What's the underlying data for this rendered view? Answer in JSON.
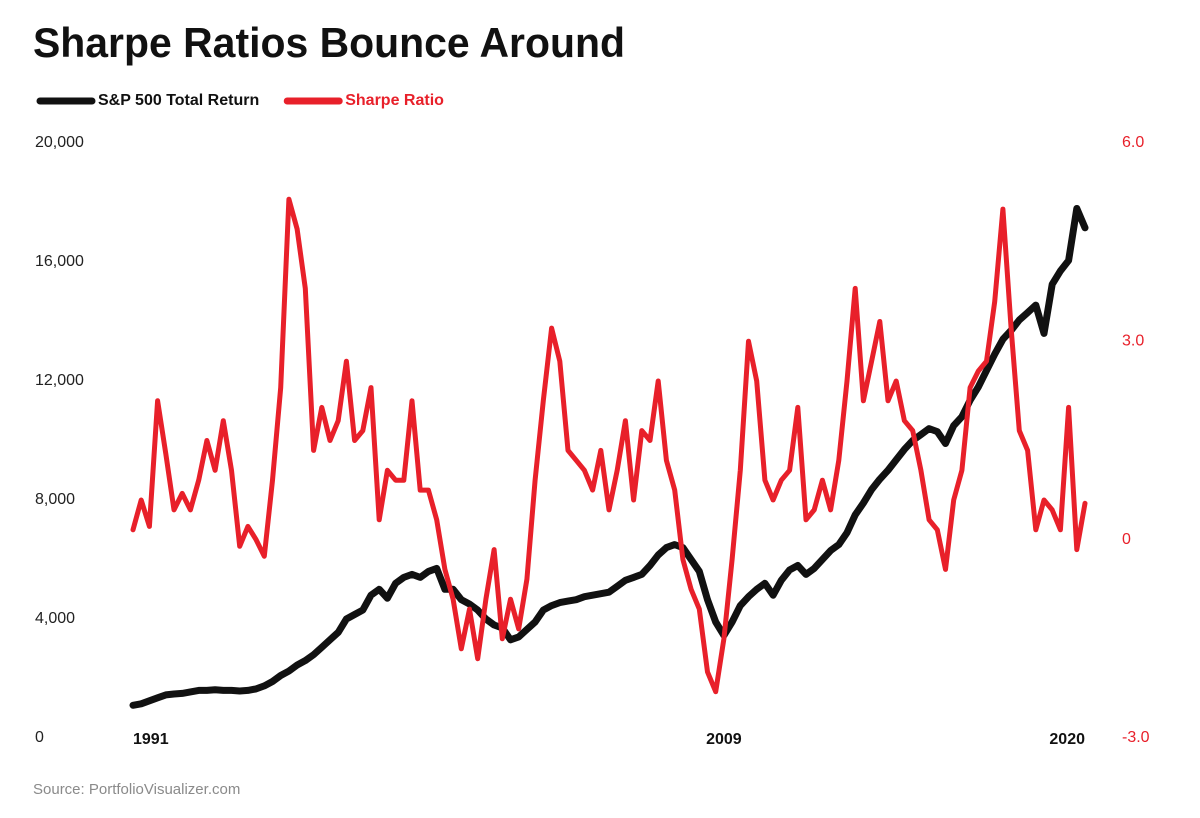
{
  "chart_data": {
    "type": "line",
    "title": "Sharpe Ratios Bounce Around",
    "source": "Source: PortfolioVisualizer.com",
    "x": [
      1991,
      1991.25,
      1991.5,
      1991.75,
      1992,
      1992.25,
      1992.5,
      1992.75,
      1993,
      1993.25,
      1993.5,
      1993.75,
      1994,
      1994.25,
      1994.5,
      1994.75,
      1995,
      1995.25,
      1995.5,
      1995.75,
      1996,
      1996.25,
      1996.5,
      1996.75,
      1997,
      1997.25,
      1997.5,
      1997.75,
      1998,
      1998.25,
      1998.5,
      1998.75,
      1999,
      1999.25,
      1999.5,
      1999.75,
      2000,
      2000.25,
      2000.5,
      2000.75,
      2001,
      2001.25,
      2001.5,
      2001.75,
      2002,
      2002.25,
      2002.5,
      2002.75,
      2003,
      2003.25,
      2003.5,
      2003.75,
      2004,
      2004.25,
      2004.5,
      2004.75,
      2005,
      2005.25,
      2005.5,
      2005.75,
      2006,
      2006.25,
      2006.5,
      2006.75,
      2007,
      2007.25,
      2007.5,
      2007.75,
      2008,
      2008.25,
      2008.5,
      2008.75,
      2009,
      2009.25,
      2009.5,
      2009.75,
      2010,
      2010.25,
      2010.5,
      2010.75,
      2011,
      2011.25,
      2011.5,
      2011.75,
      2012,
      2012.25,
      2012.5,
      2012.75,
      2013,
      2013.25,
      2013.5,
      2013.75,
      2014,
      2014.25,
      2014.5,
      2014.75,
      2015,
      2015.25,
      2015.5,
      2015.75,
      2016,
      2016.25,
      2016.5,
      2016.75,
      2017,
      2017.25,
      2017.5,
      2017.75,
      2018,
      2018.25,
      2018.5,
      2018.75,
      2019,
      2019.25,
      2019.5,
      2019.75,
      2020
    ],
    "series": [
      {
        "name": "S&P 500 Total Return",
        "color": "#111111",
        "axis": "y",
        "values": [
          1100,
          1150,
          1250,
          1350,
          1450,
          1480,
          1500,
          1550,
          1600,
          1600,
          1620,
          1600,
          1600,
          1580,
          1600,
          1650,
          1750,
          1900,
          2100,
          2250,
          2450,
          2600,
          2800,
          3050,
          3300,
          3550,
          4000,
          4150,
          4300,
          4800,
          5000,
          4700,
          5200,
          5400,
          5500,
          5400,
          5600,
          5700,
          5000,
          5000,
          4650,
          4500,
          4300,
          4000,
          3800,
          3700,
          3300,
          3400,
          3650,
          3900,
          4300,
          4450,
          4550,
          4600,
          4650,
          4750,
          4800,
          4850,
          4900,
          5100,
          5300,
          5400,
          5500,
          5800,
          6150,
          6400,
          6500,
          6400,
          6000,
          5600,
          4650,
          3900,
          3450,
          3900,
          4450,
          4750,
          5000,
          5200,
          4800,
          5300,
          5650,
          5800,
          5500,
          5700,
          6000,
          6300,
          6500,
          6900,
          7500,
          7900,
          8350,
          8700,
          9000,
          9350,
          9700,
          10000,
          10200,
          10400,
          10300,
          9900,
          10500,
          10800,
          11350,
          11800,
          12350,
          12900,
          13400,
          13700,
          14050,
          14300,
          14550,
          13600,
          15250,
          15700,
          16050,
          17800,
          17150
        ]
      },
      {
        "name": "Sharpe Ratio",
        "color": "#e8202a",
        "axis": "y2",
        "values": [
          0.15,
          0.6,
          0.2,
          2.1,
          1.3,
          0.45,
          0.7,
          0.45,
          0.9,
          1.5,
          1.05,
          1.8,
          1.05,
          -0.1,
          0.2,
          0,
          -0.25,
          0.9,
          2.3,
          5.15,
          4.7,
          3.8,
          1.35,
          2.0,
          1.5,
          1.8,
          2.7,
          1.5,
          1.65,
          2.3,
          0.3,
          1.05,
          0.9,
          0.9,
          2.1,
          0.75,
          0.75,
          0.3,
          -0.45,
          -0.9,
          -1.65,
          -1.05,
          -1.8,
          -0.9,
          -0.15,
          -1.5,
          -0.9,
          -1.35,
          -0.6,
          0.9,
          2.1,
          3.2,
          2.7,
          1.35,
          1.2,
          1.05,
          0.75,
          1.35,
          0.45,
          1.05,
          1.8,
          0.6,
          1.65,
          1.5,
          2.4,
          1.2,
          0.75,
          -0.3,
          -0.75,
          -1.05,
          -2.0,
          -2.3,
          -1.5,
          -0.3,
          1.05,
          3.0,
          2.4,
          0.9,
          0.6,
          0.9,
          1.05,
          2.0,
          0.3,
          0.45,
          0.9,
          0.45,
          1.2,
          2.4,
          3.8,
          2.1,
          2.7,
          3.3,
          2.1,
          2.4,
          1.8,
          1.65,
          1.05,
          0.3,
          0.15,
          -0.45,
          0.6,
          1.05,
          2.3,
          2.55,
          2.7,
          3.6,
          5.0,
          3.2,
          1.65,
          1.35,
          0.15,
          0.6,
          0.45,
          0.15,
          2.0,
          -0.15,
          0.55
        ]
      }
    ],
    "xlim": [
      1991,
      2020
    ],
    "xticks": [
      1991,
      2009,
      2020
    ],
    "ylim": [
      0,
      20000
    ],
    "yticks": [
      0,
      {
        "value": 4000,
        "label": "4,000"
      },
      {
        "value": 8000,
        "label": "8,000"
      },
      {
        "value": 12000,
        "label": "12,000"
      },
      {
        "value": 16000,
        "label": "16,000"
      },
      {
        "value": 20000,
        "label": "20,000"
      }
    ],
    "y2lim": [
      -3,
      6
    ],
    "y2ticks": [
      {
        "value": -3,
        "label": "-3.0"
      },
      0,
      {
        "value": 3,
        "label": "3.0"
      },
      {
        "value": 6,
        "label": "6.0"
      }
    ],
    "grid": false
  }
}
